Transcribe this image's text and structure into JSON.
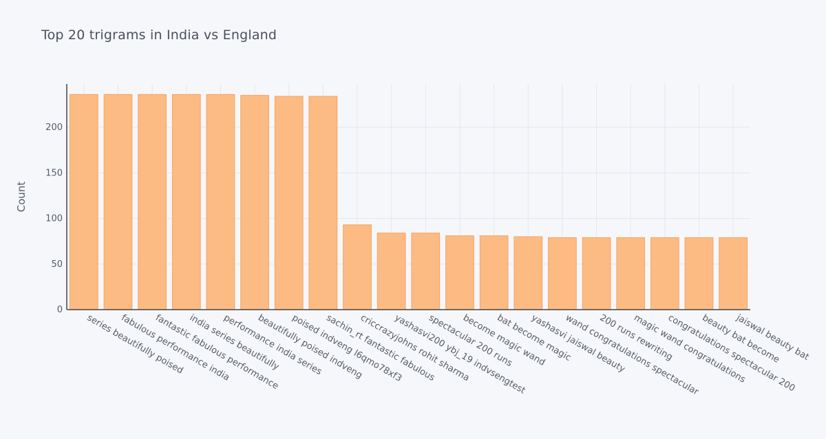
{
  "chart_data": {
    "type": "bar",
    "title": "Top 20 trigrams in India vs England",
    "xlabel": "",
    "ylabel": "Count",
    "ylim": [
      0,
      240
    ],
    "yticks": [
      0,
      50,
      100,
      150,
      200
    ],
    "grid": true,
    "categories": [
      "series beautifully poised",
      "fabulous performance india",
      "fantastic fabulous performance",
      "india series beautifully",
      "performance india series",
      "beautifully poised indveng",
      "poised indveng l6qmo78xf3",
      "sachin_rt fantastic fabulous",
      "criccrazyjohns rohit sharma",
      "yashasvi200 ybj_19 indvsengtest",
      "spectacular 200 runs",
      "become magic wand",
      "bat become magic",
      "yashasvi jaiswal beauty",
      "wand congratulations spectacular",
      "200 runs rewriting",
      "magic wand congratulations",
      "congratulations spectacular 200",
      "beauty bat become",
      "jaiswal beauty bat"
    ],
    "values": [
      236,
      236,
      236,
      236,
      236,
      235,
      234,
      234,
      93,
      84,
      84,
      81,
      81,
      80,
      79,
      79,
      79,
      79,
      79,
      79
    ],
    "colors": {
      "bar": "#fdbb84",
      "bar_edge": "#f5a25d",
      "axis": "#444444",
      "grid": "#e4e7ee"
    }
  }
}
